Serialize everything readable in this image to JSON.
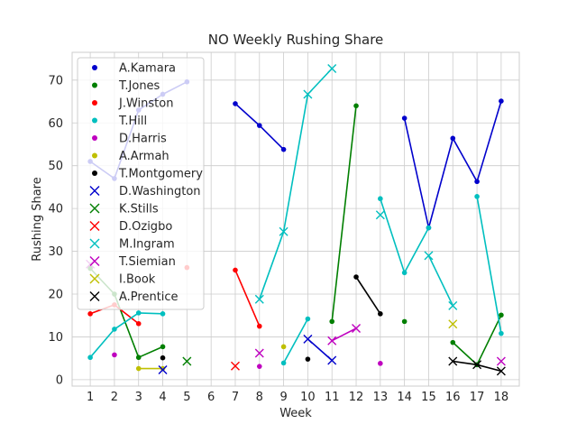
{
  "chart_data": {
    "type": "line",
    "title": "NO Weekly Rushing Share",
    "xlabel": "Week",
    "ylabel": "Rushing Share",
    "xlim": [
      0.25,
      18.75
    ],
    "ylim": [
      -1.5,
      76.5
    ],
    "xticks": [
      1,
      2,
      3,
      4,
      5,
      6,
      7,
      8,
      9,
      10,
      11,
      12,
      13,
      14,
      15,
      16,
      17,
      18
    ],
    "yticks": [
      0,
      10,
      20,
      30,
      40,
      50,
      60,
      70
    ],
    "grid": true,
    "legend_position": "upper-left",
    "series": [
      {
        "name": "A.Kamara",
        "color": "#0000cc",
        "marker": "dot",
        "segments": [
          [
            [
              1,
              51.0
            ],
            [
              2,
              47.0
            ],
            [
              3,
              63.0
            ],
            [
              4,
              66.7
            ],
            [
              5,
              69.6
            ]
          ],
          [
            [
              7,
              64.5
            ],
            [
              8,
              59.4
            ],
            [
              9,
              53.8
            ]
          ],
          [
            [
              14,
              61.1
            ],
            [
              15,
              35.5
            ],
            [
              16,
              56.4
            ],
            [
              17,
              46.3
            ],
            [
              18,
              65.1
            ]
          ]
        ]
      },
      {
        "name": "T.Jones",
        "color": "#007f00",
        "marker": "dot",
        "segments": [
          [
            [
              1,
              26.0
            ],
            [
              2,
              20.0
            ],
            [
              3,
              5.2
            ],
            [
              4,
              7.7
            ]
          ],
          [
            [
              11,
              13.6
            ],
            [
              12,
              64.0
            ]
          ],
          [
            [
              14,
              13.6
            ]
          ],
          [
            [
              16,
              8.7
            ],
            [
              17,
              3.5
            ],
            [
              18,
              15.1
            ]
          ]
        ]
      },
      {
        "name": "J.Winston",
        "color": "#ff0000",
        "marker": "dot",
        "segments": [
          [
            [
              1,
              15.4
            ],
            [
              2,
              17.5
            ],
            [
              3,
              13.1
            ]
          ],
          [
            [
              5,
              26.2
            ]
          ],
          [
            [
              7,
              25.6
            ],
            [
              8,
              12.5
            ]
          ]
        ]
      },
      {
        "name": "T.Hill",
        "color": "#00bfbf",
        "marker": "dot",
        "segments": [
          [
            [
              1,
              5.2
            ],
            [
              2,
              11.8
            ],
            [
              3,
              15.6
            ],
            [
              4,
              15.4
            ]
          ],
          [
            [
              9,
              3.9
            ],
            [
              10,
              14.2
            ]
          ],
          [
            [
              13,
              42.3
            ],
            [
              14,
              25.0
            ],
            [
              15,
              35.5
            ]
          ],
          [
            [
              17,
              42.8
            ],
            [
              18,
              10.8
            ]
          ]
        ]
      },
      {
        "name": "D.Harris",
        "color": "#bf00bf",
        "marker": "dot",
        "segments": [
          [
            [
              2,
              5.8
            ]
          ],
          [
            [
              8,
              3.1
            ]
          ],
          [
            [
              13,
              3.8
            ]
          ]
        ]
      },
      {
        "name": "A.Armah",
        "color": "#bfbf00",
        "marker": "dot",
        "segments": [
          [
            [
              3,
              2.6
            ],
            [
              4,
              2.6
            ]
          ],
          [
            [
              9,
              7.7
            ]
          ]
        ]
      },
      {
        "name": "T.Montgomery",
        "color": "#000000",
        "marker": "dot",
        "segments": [
          [
            [
              4,
              5.1
            ]
          ],
          [
            [
              10,
              4.8
            ]
          ],
          [
            [
              12,
              24.0
            ],
            [
              13,
              15.4
            ]
          ]
        ]
      },
      {
        "name": "D.Washington",
        "color": "#0000cc",
        "marker": "x",
        "segments": [
          [
            [
              4,
              2.3
            ]
          ],
          [
            [
              10,
              9.5
            ],
            [
              11,
              4.5
            ]
          ]
        ]
      },
      {
        "name": "K.Stills",
        "color": "#007f00",
        "marker": "x",
        "segments": [
          [
            [
              5,
              4.3
            ]
          ]
        ]
      },
      {
        "name": "D.Ozigbo",
        "color": "#ff0000",
        "marker": "x",
        "segments": [
          [
            [
              7,
              3.2
            ]
          ]
        ]
      },
      {
        "name": "M.Ingram",
        "color": "#00bfbf",
        "marker": "x",
        "segments": [
          [
            [
              8,
              18.8
            ],
            [
              9,
              34.6
            ],
            [
              10,
              66.7
            ],
            [
              11,
              72.7
            ]
          ],
          [
            [
              13,
              38.5
            ]
          ],
          [
            [
              15,
              29.0
            ],
            [
              16,
              17.3
            ]
          ]
        ]
      },
      {
        "name": "T.Siemian",
        "color": "#bf00bf",
        "marker": "x",
        "segments": [
          [
            [
              1,
              27.0
            ]
          ],
          [
            [
              8,
              6.2
            ]
          ],
          [
            [
              11,
              9.1
            ],
            [
              12,
              12.0
            ]
          ],
          [
            [
              18,
              4.3
            ]
          ]
        ]
      },
      {
        "name": "I.Book",
        "color": "#bfbf00",
        "marker": "x",
        "segments": [
          [
            [
              16,
              13.0
            ]
          ]
        ]
      },
      {
        "name": "A.Prentice",
        "color": "#000000",
        "marker": "x",
        "segments": [
          [
            [
              16,
              4.3
            ],
            [
              17,
              3.5
            ],
            [
              18,
              2.0
            ]
          ]
        ]
      }
    ]
  }
}
